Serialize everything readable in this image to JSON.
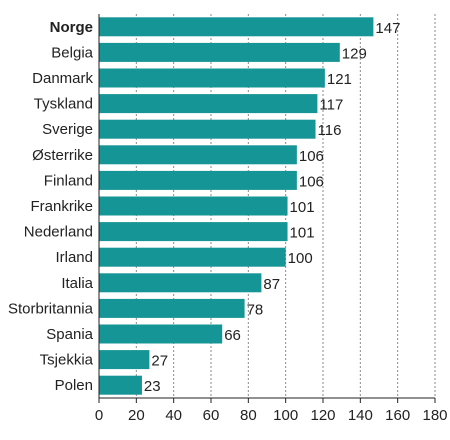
{
  "chart_data": {
    "type": "bar",
    "orientation": "horizontal",
    "categories": [
      "Norge",
      "Belgia",
      "Danmark",
      "Tyskland",
      "Sverige",
      "Østerrike",
      "Finland",
      "Frankrike",
      "Nederland",
      "Irland",
      "Italia",
      "Storbritannia",
      "Spania",
      "Tsjekkia",
      "Polen"
    ],
    "values": [
      147,
      129,
      121,
      117,
      116,
      106,
      106,
      101,
      101,
      100,
      87,
      78,
      66,
      27,
      23
    ],
    "highlight_category": "Norge",
    "xlim": [
      0,
      180
    ],
    "xticks": [
      0,
      20,
      40,
      60,
      80,
      100,
      120,
      140,
      160,
      180
    ],
    "grid": "vertical dotted",
    "bar_color": "#169596",
    "title": "",
    "xlabel": "",
    "ylabel": ""
  }
}
